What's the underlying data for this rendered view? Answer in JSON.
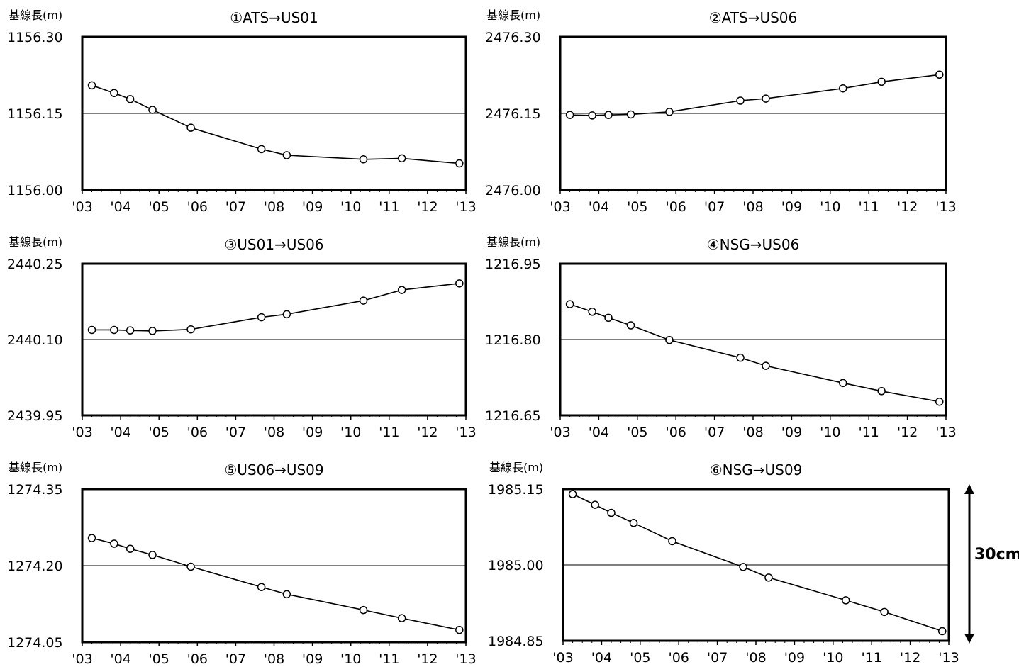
{
  "x_ticks": [
    "'03",
    "'04",
    "'05",
    "'06",
    "'07",
    "'08",
    "'09",
    "'10",
    "'11",
    "'12",
    "'13"
  ],
  "y_unit_label": "基線長(m)",
  "scale_bar": {
    "label": "30cm",
    "meters": 0.3
  },
  "chart_data": [
    {
      "type": "line",
      "title": "①ATS→US01",
      "ylabel": "基線長(m)",
      "ylim": [
        1156.0,
        1156.3
      ],
      "yticks": [
        "1156.30",
        "1156.15",
        "1156.00"
      ],
      "reference": 1156.15,
      "series": [
        {
          "x": [
            2003.25,
            2003.83,
            2004.25,
            2004.83,
            2005.83,
            2007.67,
            2008.33,
            2010.33,
            2011.33,
            2012.83
          ],
          "y": [
            1156.205,
            1156.19,
            1156.178,
            1156.157,
            1156.122,
            1156.08,
            1156.068,
            1156.06,
            1156.062,
            1156.052
          ]
        }
      ]
    },
    {
      "type": "line",
      "title": "②ATS→US06",
      "ylabel": "基線長(m)",
      "ylim": [
        2476.0,
        2476.3
      ],
      "yticks": [
        "2476.30",
        "2476.15",
        "2476.00"
      ],
      "reference": 2476.15,
      "series": [
        {
          "x": [
            2003.25,
            2003.83,
            2004.25,
            2004.83,
            2005.83,
            2007.67,
            2008.33,
            2010.33,
            2011.33,
            2012.83
          ],
          "y": [
            2476.147,
            2476.146,
            2476.147,
            2476.148,
            2476.153,
            2476.175,
            2476.179,
            2476.199,
            2476.212,
            2476.226
          ]
        }
      ]
    },
    {
      "type": "line",
      "title": "③US01→US06",
      "ylabel": "基線長(m)",
      "ylim": [
        2439.95,
        2440.25
      ],
      "yticks": [
        "2440.25",
        "2440.10",
        "2439.95"
      ],
      "reference": 2440.1,
      "series": [
        {
          "x": [
            2003.25,
            2003.83,
            2004.25,
            2004.83,
            2005.83,
            2007.67,
            2008.33,
            2010.33,
            2011.33,
            2012.83
          ],
          "y": [
            2440.119,
            2440.119,
            2440.118,
            2440.117,
            2440.12,
            2440.144,
            2440.15,
            2440.177,
            2440.198,
            2440.211
          ]
        }
      ]
    },
    {
      "type": "line",
      "title": "④NSG→US06",
      "ylabel": "基線長(m)",
      "ylim": [
        1216.65,
        1216.95
      ],
      "yticks": [
        "1216.95",
        "1216.80",
        "1216.65"
      ],
      "reference": 1216.8,
      "series": [
        {
          "x": [
            2003.25,
            2003.83,
            2004.25,
            2004.83,
            2005.83,
            2007.67,
            2008.33,
            2010.33,
            2011.33,
            2012.83
          ],
          "y": [
            1216.87,
            1216.855,
            1216.843,
            1216.828,
            1216.799,
            1216.764,
            1216.748,
            1216.714,
            1216.698,
            1216.677
          ]
        }
      ]
    },
    {
      "type": "line",
      "title": "⑤US06→US09",
      "ylabel": "基線長(m)",
      "ylim": [
        1274.05,
        1274.35
      ],
      "yticks": [
        "1274.35",
        "1274.20",
        "1274.05"
      ],
      "reference": 1274.2,
      "series": [
        {
          "x": [
            2003.25,
            2003.83,
            2004.25,
            2004.83,
            2005.83,
            2007.67,
            2008.33,
            2010.33,
            2011.33,
            2012.83
          ],
          "y": [
            1274.254,
            1274.243,
            1274.233,
            1274.221,
            1274.198,
            1274.158,
            1274.144,
            1274.113,
            1274.097,
            1274.074
          ]
        }
      ]
    },
    {
      "type": "line",
      "title": "⑥NSG→US09",
      "ylabel": "基線長(m)",
      "ylim": [
        1984.85,
        1985.15
      ],
      "yticks": [
        "1985.15",
        "1985.00",
        "1984.85"
      ],
      "reference": 1985.0,
      "series": [
        {
          "x": [
            2003.25,
            2003.83,
            2004.25,
            2004.83,
            2005.83,
            2007.67,
            2008.33,
            2010.33,
            2011.33,
            2012.83
          ],
          "y": [
            1985.14,
            1985.119,
            1985.103,
            1985.083,
            1985.047,
            1984.996,
            1984.975,
            1984.93,
            1984.907,
            1984.869
          ]
        }
      ]
    }
  ]
}
